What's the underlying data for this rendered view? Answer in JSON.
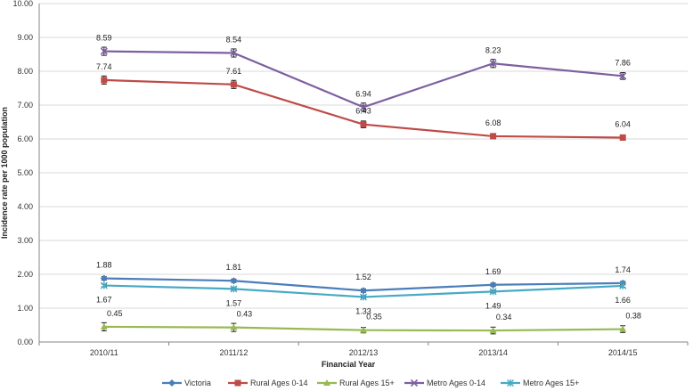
{
  "chart_data": {
    "type": "line",
    "xlabel": "Financial Year",
    "ylabel": "Incidence rate per 1000 population",
    "ylim": [
      0,
      10
    ],
    "ytick_step": 1,
    "ytick_labels": [
      "0.00",
      "1.00",
      "2.00",
      "3.00",
      "4.00",
      "5.00",
      "6.00",
      "7.00",
      "8.00",
      "9.00",
      "10.00"
    ],
    "categories": [
      "2010/11",
      "2011/12",
      "2012/13",
      "2013/14",
      "2014/15"
    ],
    "grid": true,
    "legend_position": "bottom",
    "series": [
      {
        "name": "Victoria",
        "color": "#4a7ebb",
        "marker": "diamond",
        "values": [
          1.88,
          1.81,
          1.52,
          1.69,
          1.74
        ],
        "labels": [
          "1.88",
          "1.81",
          "1.52",
          "1.69",
          "1.74"
        ],
        "label_position": "above",
        "error": [
          0.05,
          0.05,
          0.05,
          0.05,
          0.05
        ]
      },
      {
        "name": "Rural Ages 0-14",
        "color": "#be4b48",
        "marker": "square",
        "values": [
          7.74,
          7.61,
          6.43,
          6.08,
          6.04
        ],
        "labels": [
          "7.74",
          "7.61",
          "6.43",
          "6.08",
          "6.04"
        ],
        "label_position": "above",
        "error": [
          0.12,
          0.12,
          0.1,
          0.08,
          0.08
        ]
      },
      {
        "name": "Rural Ages 15+",
        "color": "#98b954",
        "marker": "triangle",
        "values": [
          0.45,
          0.43,
          0.35,
          0.34,
          0.38
        ],
        "labels": [
          "0.45",
          "0.43",
          "0.35",
          "0.34",
          "0.38"
        ],
        "label_position": "above",
        "error": [
          0.12,
          0.12,
          0.08,
          0.1,
          0.1
        ]
      },
      {
        "name": "Metro Ages 0-14",
        "color": "#7d60a0",
        "marker": "x",
        "values": [
          8.59,
          8.54,
          6.94,
          8.23,
          7.86
        ],
        "labels": [
          "8.59",
          "8.54",
          "6.94",
          "8.23",
          "7.86"
        ],
        "label_position": "above",
        "error": [
          0.12,
          0.12,
          0.12,
          0.12,
          0.1
        ]
      },
      {
        "name": "Metro Ages 15+",
        "color": "#46aac5",
        "marker": "star",
        "values": [
          1.67,
          1.57,
          1.33,
          1.49,
          1.66
        ],
        "labels": [
          "1.67",
          "1.57",
          "1.33",
          "1.49",
          "1.66"
        ],
        "label_position": "below",
        "error": [
          0.04,
          0.04,
          0.04,
          0.04,
          0.04
        ]
      }
    ]
  }
}
